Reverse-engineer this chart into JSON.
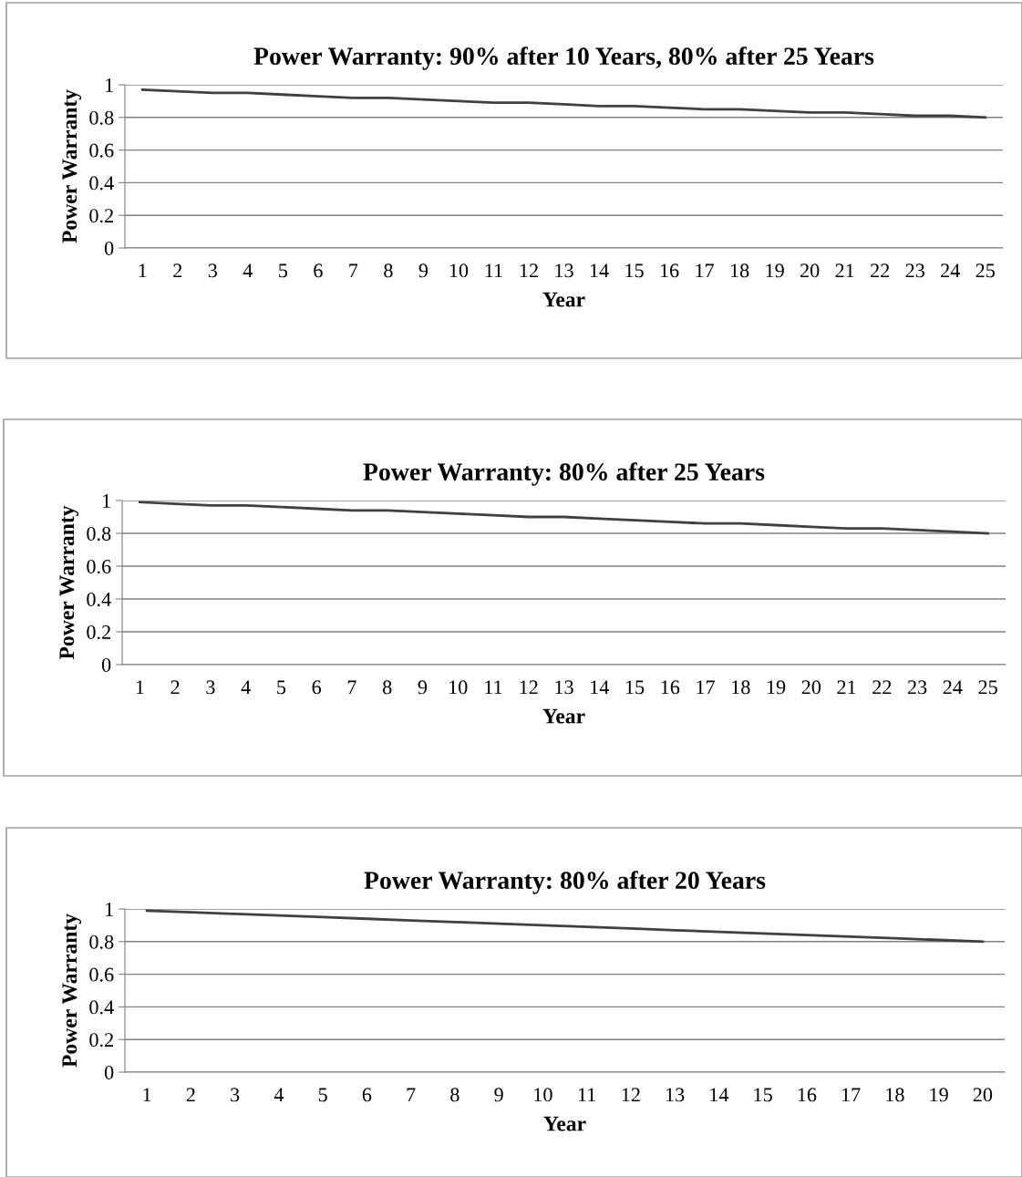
{
  "chart_data": [
    {
      "type": "line",
      "title": "Power Warranty: 90% after 10 Years, 80% after 25 Years",
      "xlabel": "Year",
      "ylabel": "Power Warranty",
      "categories": [
        "1",
        "2",
        "3",
        "4",
        "5",
        "6",
        "7",
        "8",
        "9",
        "10",
        "11",
        "12",
        "13",
        "14",
        "15",
        "16",
        "17",
        "18",
        "19",
        "20",
        "21",
        "22",
        "23",
        "24",
        "25"
      ],
      "series": [
        {
          "color": "#404040",
          "values": [
            0.97,
            0.96,
            0.95,
            0.95,
            0.94,
            0.93,
            0.92,
            0.92,
            0.91,
            0.9,
            0.89,
            0.89,
            0.88,
            0.87,
            0.87,
            0.86,
            0.85,
            0.85,
            0.84,
            0.83,
            0.83,
            0.82,
            0.81,
            0.81,
            0.8
          ]
        }
      ],
      "ylim": [
        0,
        1
      ],
      "yticks": [
        0,
        0.2,
        0.4,
        0.6,
        0.8,
        1
      ],
      "grid": "y",
      "marker": "none",
      "line_style": "solid"
    },
    {
      "type": "line",
      "title": "Power Warranty: 80% after 25 Years",
      "xlabel": "Year",
      "ylabel": "Power Warranty",
      "categories": [
        "1",
        "2",
        "3",
        "4",
        "5",
        "6",
        "7",
        "8",
        "9",
        "10",
        "11",
        "12",
        "13",
        "14",
        "15",
        "16",
        "17",
        "18",
        "19",
        "20",
        "21",
        "22",
        "23",
        "24",
        "25"
      ],
      "series": [
        {
          "color": "#404040",
          "values": [
            0.99,
            0.98,
            0.97,
            0.97,
            0.96,
            0.95,
            0.94,
            0.94,
            0.93,
            0.92,
            0.91,
            0.9,
            0.9,
            0.89,
            0.88,
            0.87,
            0.86,
            0.86,
            0.85,
            0.84,
            0.83,
            0.83,
            0.82,
            0.81,
            0.8
          ]
        }
      ],
      "ylim": [
        0,
        1
      ],
      "yticks": [
        0,
        0.2,
        0.4,
        0.6,
        0.8,
        1
      ],
      "grid": "y",
      "marker": "none",
      "line_style": "solid"
    },
    {
      "type": "line",
      "title": "Power Warranty: 80% after 20 Years",
      "xlabel": "Year",
      "ylabel": "Power Warranty",
      "categories": [
        "1",
        "2",
        "3",
        "4",
        "5",
        "6",
        "7",
        "8",
        "9",
        "10",
        "11",
        "12",
        "13",
        "14",
        "15",
        "16",
        "17",
        "18",
        "19",
        "20"
      ],
      "series": [
        {
          "color": "#404040",
          "values": [
            0.99,
            0.98,
            0.97,
            0.96,
            0.95,
            0.94,
            0.93,
            0.92,
            0.91,
            0.9,
            0.89,
            0.88,
            0.87,
            0.86,
            0.85,
            0.84,
            0.83,
            0.82,
            0.81,
            0.8
          ]
        }
      ],
      "ylim": [
        0,
        1
      ],
      "yticks": [
        0,
        0.2,
        0.4,
        0.6,
        0.8,
        1
      ],
      "grid": "y",
      "marker": "none",
      "line_style": "solid"
    }
  ]
}
